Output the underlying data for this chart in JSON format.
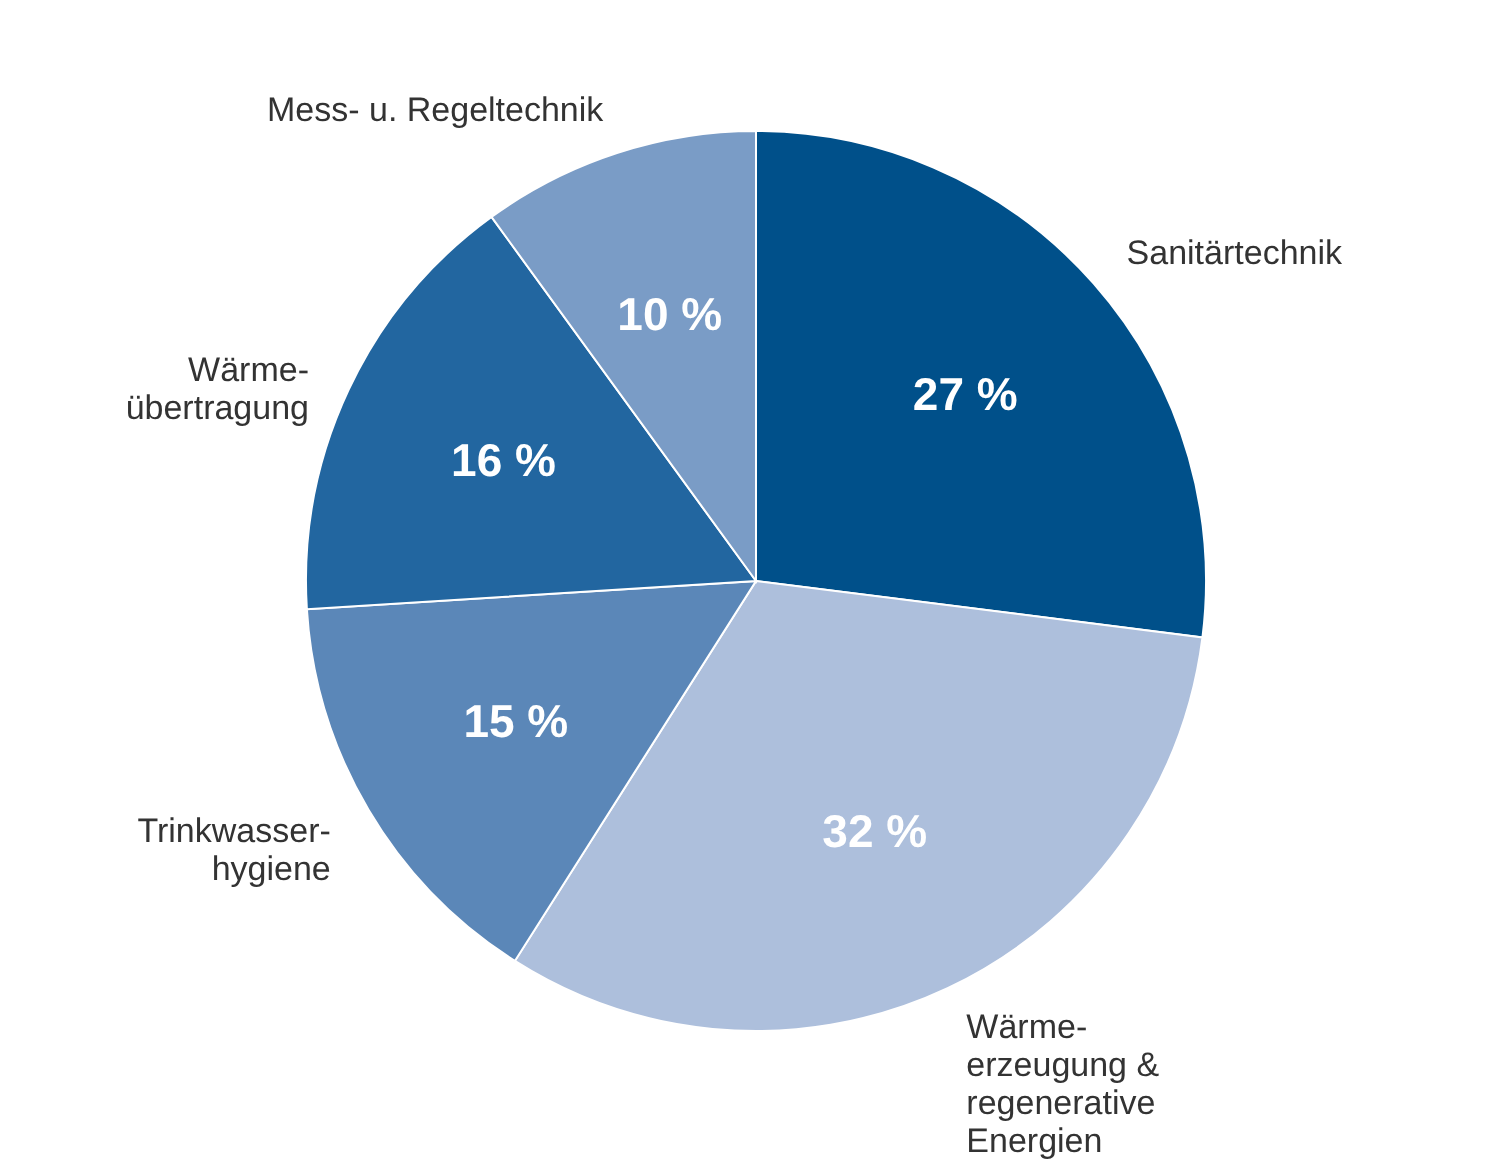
{
  "chart_data": {
    "type": "pie",
    "categories": [
      "Sanitärtechnik",
      "Wärme-\nerzeugung &\nregenerative\nEnergien",
      "Trinkwasser-\nhygiene",
      "Wärme-\nübertragung",
      "Mess- u. Regeltechnik"
    ],
    "values": [
      27,
      32,
      15,
      16,
      10
    ],
    "colors": [
      "#00508a",
      "#adbfdc",
      "#5b87b8",
      "#2266a0",
      "#7a9cc6"
    ],
    "value_labels": [
      "27 %",
      "32 %",
      "15 %",
      "16 %",
      "10 %"
    ]
  }
}
